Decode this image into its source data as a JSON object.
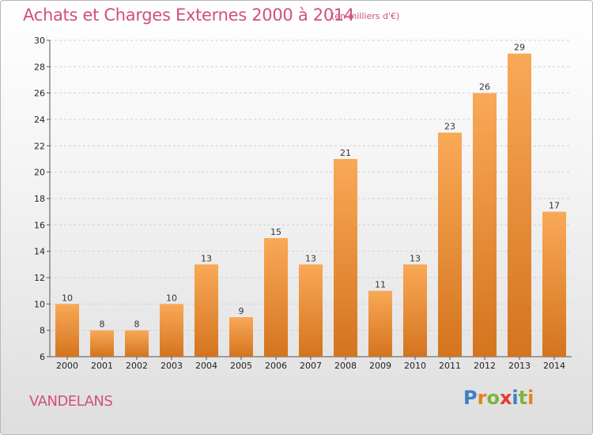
{
  "title": "Achats et Charges Externes 2000 à 2014",
  "subtitle": "(en milliers d'€)",
  "commune": "VANDELANS",
  "logo": {
    "text": "Proxiti",
    "letters": [
      "P",
      "r",
      "o",
      "x",
      "i",
      "t",
      "i"
    ],
    "colors": [
      "#3d7fc1",
      "#e8801f",
      "#7cb342",
      "#e53935",
      "#3d7fc1",
      "#7cb342",
      "#e8801f"
    ]
  },
  "colors": {
    "title": "#d14f7f",
    "bar_top": "#f9a957",
    "bar_bottom": "#d4741e",
    "grid": "#d0d0d0"
  },
  "chart_data": {
    "type": "bar",
    "title": "Achats et Charges Externes 2000 à 2014",
    "subtitle": "(en milliers d'€)",
    "categories": [
      "2000",
      "2001",
      "2002",
      "2003",
      "2004",
      "2005",
      "2006",
      "2007",
      "2008",
      "2009",
      "2010",
      "2011",
      "2012",
      "2013",
      "2014"
    ],
    "values": [
      10,
      8,
      8,
      10,
      13,
      9,
      15,
      13,
      21,
      11,
      13,
      23,
      26,
      29,
      17
    ],
    "ylim": [
      6,
      30
    ],
    "yticks": [
      6,
      8,
      10,
      12,
      14,
      16,
      18,
      20,
      22,
      24,
      26,
      28,
      30
    ],
    "grid": "horizontal dashed",
    "legend": "none"
  }
}
